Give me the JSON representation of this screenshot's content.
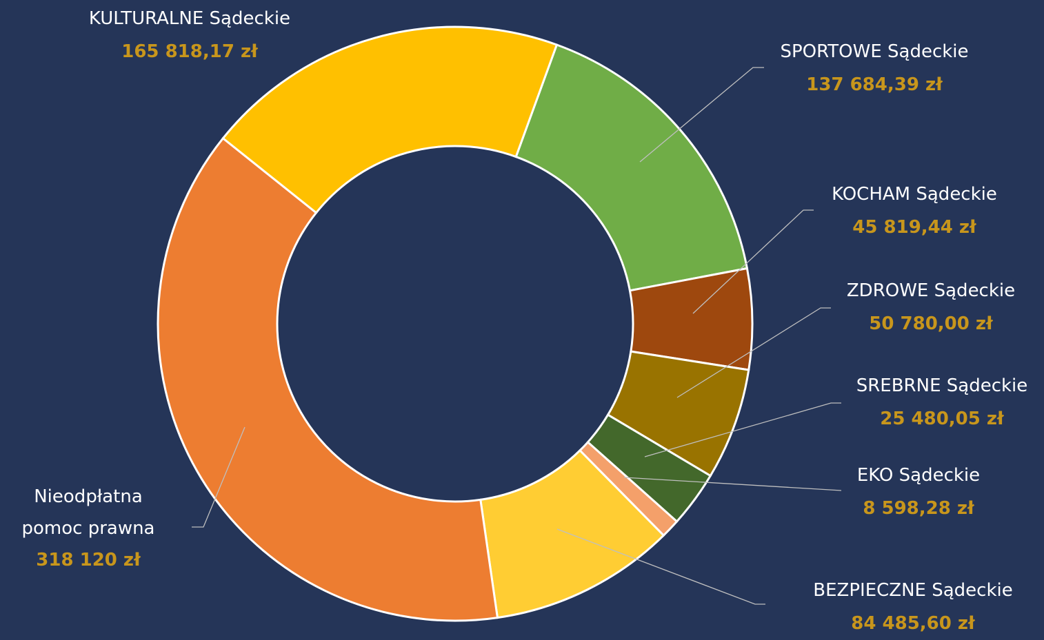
{
  "chart_data": {
    "type": "pie",
    "categories": [
      "SPORTOWE Sądeckie",
      "KOCHAM Sądeckie",
      "ZDROWE Sądeckie",
      "SREBRNE Sądeckie",
      "EKO Sądeckie",
      "BEZPIECZNE Sądeckie",
      "Nieodpłatna pomoc prawna",
      "KULTURALNE Sądeckie"
    ],
    "values": [
      137684.39,
      45819.44,
      50780.0,
      25480.05,
      8598.28,
      84485.6,
      318120,
      165818.17
    ],
    "value_labels": [
      "137 684,39 zł",
      "45 819,44 zł",
      "50 780,00 zł",
      "25 480,05 zł",
      "8 598,28 zł",
      "84 485,60 zł",
      "318 120 zł",
      "165 818,17 zł"
    ],
    "colors": [
      "#70ad47",
      "#9e480e",
      "#997300",
      "#43682b",
      "#f4a06a",
      "#ffcd33",
      "#ed7d31",
      "#ffc000"
    ]
  }
}
